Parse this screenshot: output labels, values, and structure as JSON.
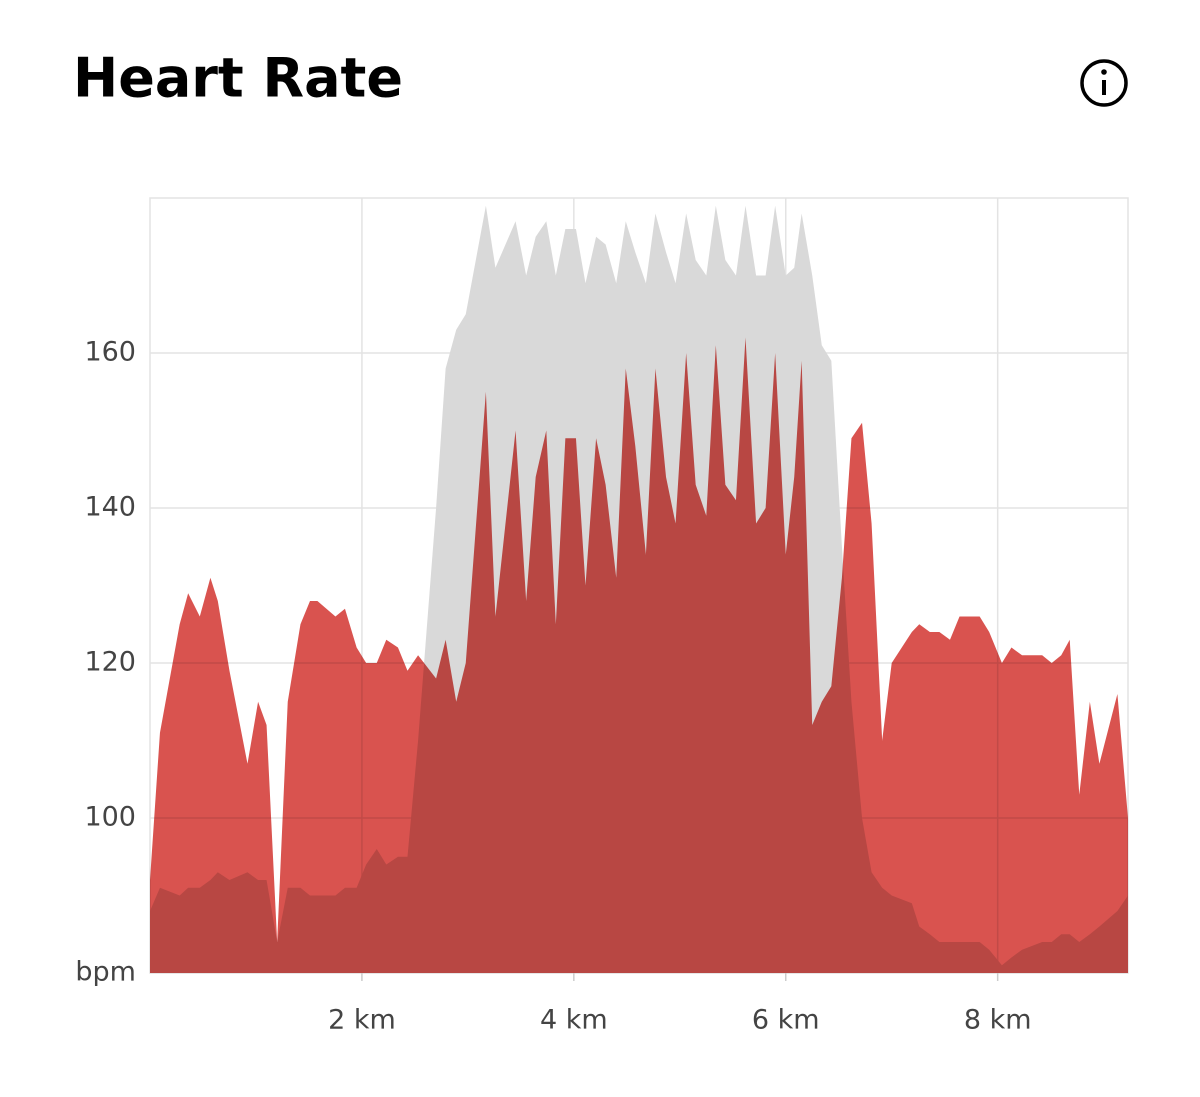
{
  "chart_data": {
    "type": "area",
    "title": "Heart Rate",
    "x": [
      0,
      0.094,
      0.28,
      0.36,
      0.47,
      0.57,
      0.64,
      0.75,
      0.92,
      1.02,
      1.1,
      1.2,
      1.3,
      1.42,
      1.51,
      1.58,
      1.75,
      1.84,
      1.95,
      2.04,
      2.14,
      2.23,
      2.34,
      2.43,
      2.53,
      2.7,
      2.79,
      2.89,
      2.98,
      3.17,
      3.26,
      3.45,
      3.55,
      3.64,
      3.74,
      3.83,
      3.92,
      4.02,
      4.11,
      4.21,
      4.3,
      4.4,
      4.49,
      4.58,
      4.68,
      4.77,
      4.87,
      4.96,
      5.06,
      5.15,
      5.25,
      5.34,
      5.43,
      5.53,
      5.62,
      5.72,
      5.81,
      5.9,
      6.0,
      6.08,
      6.15,
      6.25,
      6.34,
      6.43,
      6.53,
      6.62,
      6.72,
      6.81,
      6.91,
      7.0,
      7.19,
      7.26,
      7.36,
      7.45,
      7.55,
      7.64,
      7.83,
      7.92,
      8.04,
      8.13,
      8.23,
      8.42,
      8.51,
      8.6,
      8.68,
      8.77,
      8.87,
      8.96,
      9.13,
      9.23
    ],
    "series": [
      {
        "color": "#d9d9d9",
        "values": [
          88,
          91,
          90,
          91,
          91,
          92,
          93,
          92,
          93,
          92,
          92,
          84,
          91,
          91,
          90,
          90,
          90,
          91,
          91,
          94,
          96,
          94,
          95,
          95,
          110,
          140,
          158,
          163,
          165,
          179,
          171,
          177,
          170,
          175,
          177,
          170,
          176,
          176,
          169,
          175,
          174,
          169,
          177,
          173,
          169,
          178,
          173,
          169,
          178,
          172,
          170,
          179,
          172,
          170,
          179,
          170,
          170,
          179,
          170,
          171,
          178,
          170,
          161,
          159,
          135,
          115,
          100,
          93,
          91,
          90,
          89,
          86,
          85,
          84,
          84,
          84,
          84,
          83,
          81,
          82,
          83,
          84,
          84,
          85,
          85,
          84,
          85,
          86,
          88,
          90
        ]
      },
      {
        "color": "#d9534f",
        "values": [
          92,
          111,
          125,
          129,
          126,
          131,
          128,
          119,
          107,
          115,
          112,
          84,
          115,
          125,
          128,
          128,
          126,
          127,
          122,
          120,
          120,
          123,
          122,
          119,
          121,
          118,
          123,
          115,
          120,
          155,
          126,
          150,
          128,
          144,
          150,
          125,
          149,
          149,
          130,
          149,
          143,
          131,
          158,
          148,
          134,
          158,
          144,
          138,
          160,
          143,
          139,
          161,
          143,
          141,
          162,
          138,
          140,
          160,
          134,
          144,
          159,
          112,
          115,
          117,
          131,
          149,
          151,
          138,
          110,
          120,
          124,
          125,
          124,
          124,
          123,
          126,
          126,
          124,
          120,
          122,
          121,
          121,
          120,
          121,
          123,
          103,
          115,
          107,
          116,
          100
        ]
      }
    ],
    "xlim": [
      0,
      9.23
    ],
    "ylim": [
      80,
      180
    ],
    "xticks": [
      {
        "value": 2,
        "label": "2 km"
      },
      {
        "value": 4,
        "label": "4 km"
      },
      {
        "value": 6,
        "label": "6 km"
      },
      {
        "value": 8,
        "label": "8 km"
      }
    ],
    "yticks": [
      {
        "value": 80,
        "label": "bpm"
      },
      100,
      120,
      140,
      160
    ],
    "grid": true
  }
}
